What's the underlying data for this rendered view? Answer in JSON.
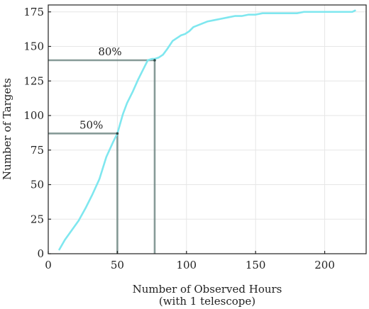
{
  "chart_data": {
    "type": "line",
    "xlabel": "Number of Observed Hours",
    "xlabel_sub": "(with 1 telescope)",
    "ylabel": "Number of Targets",
    "xlim": [
      0,
      230
    ],
    "ylim": [
      0,
      180
    ],
    "xticks": [
      0,
      50,
      100,
      150,
      200
    ],
    "yticks": [
      0,
      25,
      50,
      75,
      100,
      125,
      150,
      175
    ],
    "grid": true,
    "line_color": "#7fe7ef",
    "guide_color": "#5f7a76",
    "series": [
      {
        "x": [
          8,
          12,
          17,
          22,
          27,
          32,
          37,
          42,
          47,
          50,
          54,
          57,
          61,
          65,
          69,
          72,
          75,
          77,
          80,
          83,
          86,
          90,
          93,
          96,
          99,
          102,
          105,
          110,
          115,
          120,
          125,
          130,
          135,
          140,
          145,
          150,
          155,
          160,
          170,
          180,
          185,
          190,
          200,
          210,
          215,
          220,
          222
        ],
        "y": [
          3,
          10,
          17,
          24,
          33,
          43,
          54,
          70,
          81,
          87,
          101,
          109,
          117,
          126,
          134,
          140,
          141,
          141,
          142,
          144,
          148,
          154,
          156,
          158,
          159,
          161,
          164,
          166,
          168,
          169,
          170,
          171,
          172,
          172,
          173,
          173,
          174,
          174,
          174,
          174,
          175,
          175,
          175,
          175,
          175,
          175,
          176
        ]
      }
    ],
    "annotations": [
      {
        "text": "80%",
        "x": 77,
        "y": 140
      },
      {
        "text": "50%",
        "x": 50,
        "y": 87
      }
    ]
  }
}
